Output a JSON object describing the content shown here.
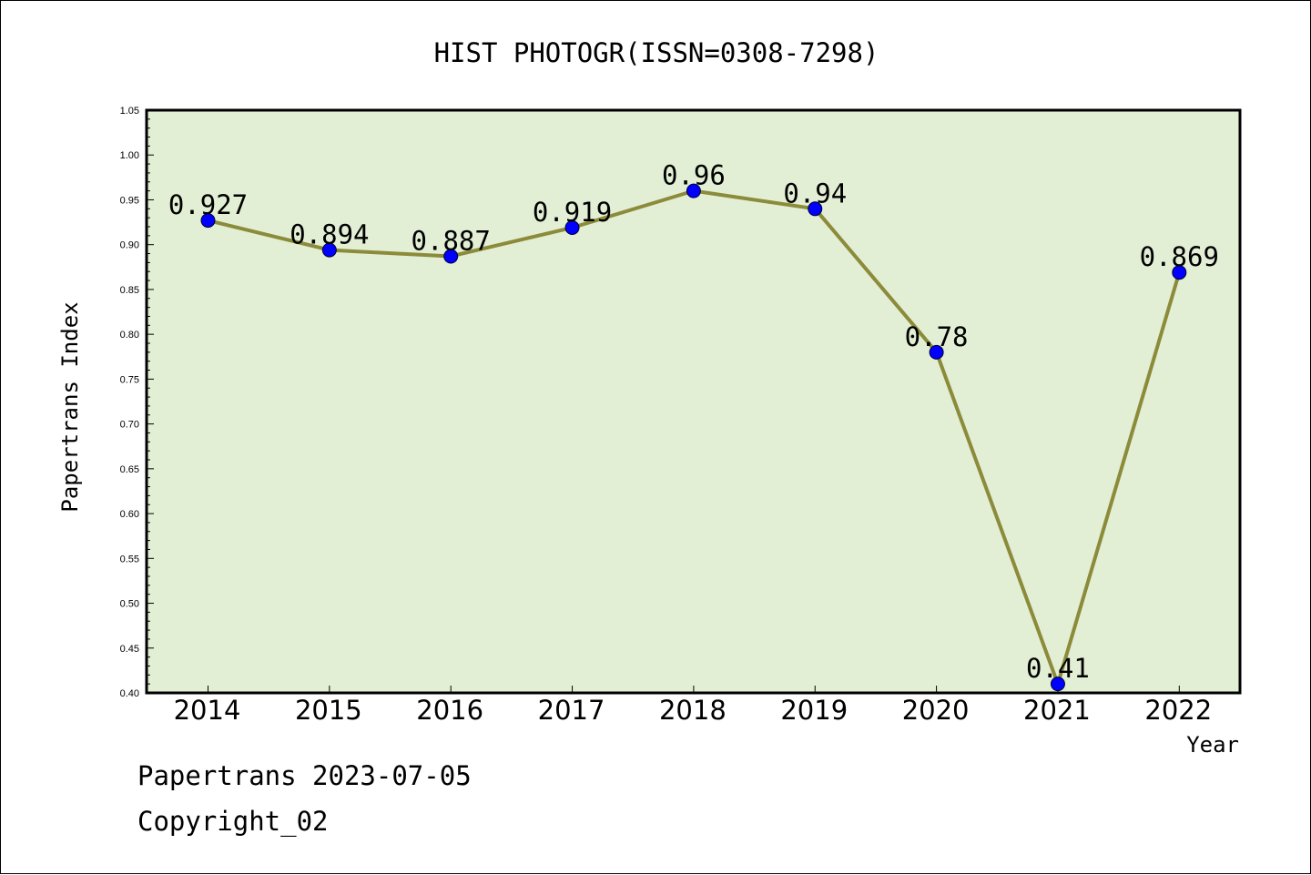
{
  "chart_data": {
    "type": "line",
    "title": "HIST PHOTOGR(ISSN=0308-7298)",
    "xlabel": "Year",
    "ylabel": "Papertrans Index",
    "categories": [
      "2014",
      "2015",
      "2016",
      "2017",
      "2018",
      "2019",
      "2020",
      "2021",
      "2022"
    ],
    "series": [
      {
        "values": [
          0.927,
          0.894,
          0.887,
          0.919,
          0.96,
          0.94,
          0.78,
          0.41,
          0.869
        ],
        "line_color": "#8b8b3a",
        "marker_color": "#0000ff"
      }
    ],
    "data_labels": [
      "0.927",
      "0.894",
      "0.887",
      "0.919",
      "0.96",
      "0.94",
      "0.78",
      "0.41",
      "0.869"
    ],
    "ylim": [
      0.4,
      1.05
    ],
    "yticks": [
      "0.40",
      "0.45",
      "0.50",
      "0.55",
      "0.60",
      "0.65",
      "0.70",
      "0.75",
      "0.80",
      "0.85",
      "0.90",
      "0.95",
      "1.00",
      "1.05"
    ],
    "grid": false,
    "legend": "none",
    "plot_background": "#e2efd5"
  },
  "footer": {
    "date_text": "Papertrans 2023-07-05",
    "copyright_text": "Copyright_02"
  }
}
